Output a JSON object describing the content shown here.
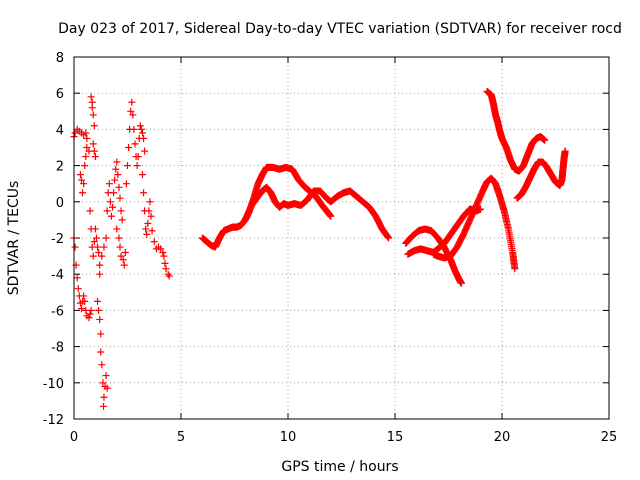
{
  "chart_data": {
    "type": "scatter",
    "title": "Day 023 of 2017, Sidereal Day-to-day VTEC variation (SDTVAR) for receiver rocd",
    "xlabel": "GPS time / hours",
    "ylabel": "SDTVAR / TECUs",
    "xlim": [
      0,
      25
    ],
    "ylim": [
      -12,
      8
    ],
    "xticks": [
      "0",
      "5",
      "10",
      "15",
      "20",
      "25"
    ],
    "yticks": [
      "8",
      "6",
      "4",
      "2",
      "0",
      "-2",
      "-4",
      "-6",
      "-8",
      "-10",
      "-12"
    ],
    "grid": true,
    "marker": "+",
    "marker_color": "#ff0000",
    "series": [
      {
        "name": "sdtvar",
        "points": [
          [
            0.0,
            3.6
          ],
          [
            0.05,
            3.8
          ],
          [
            0.15,
            4.0
          ],
          [
            0.25,
            3.9
          ],
          [
            0.35,
            3.8
          ],
          [
            0.45,
            3.7
          ],
          [
            0.55,
            3.8
          ],
          [
            0.6,
            3.5
          ],
          [
            0.0,
            -2.0
          ],
          [
            0.05,
            -2.5
          ],
          [
            0.1,
            -3.5
          ],
          [
            0.15,
            -4.2
          ],
          [
            0.2,
            -4.8
          ],
          [
            0.25,
            -5.2
          ],
          [
            0.3,
            -5.6
          ],
          [
            0.35,
            -5.9
          ],
          [
            0.4,
            -5.5
          ],
          [
            0.45,
            -5.2
          ],
          [
            0.5,
            -5.5
          ],
          [
            0.55,
            -6.0
          ],
          [
            0.6,
            -6.3
          ],
          [
            0.7,
            -6.4
          ],
          [
            0.75,
            -6.2
          ],
          [
            0.8,
            -6.0
          ],
          [
            0.3,
            1.5
          ],
          [
            0.35,
            1.2
          ],
          [
            0.4,
            0.5
          ],
          [
            0.45,
            1.0
          ],
          [
            0.5,
            2.0
          ],
          [
            0.55,
            2.5
          ],
          [
            0.6,
            3.0
          ],
          [
            0.7,
            2.8
          ],
          [
            0.75,
            -0.5
          ],
          [
            0.8,
            -1.5
          ],
          [
            0.85,
            -2.5
          ],
          [
            0.9,
            -3.0
          ],
          [
            0.95,
            -2.2
          ],
          [
            1.0,
            -1.5
          ],
          [
            1.05,
            -2.0
          ],
          [
            0.8,
            5.8
          ],
          [
            0.85,
            5.5
          ],
          [
            0.9,
            4.8
          ],
          [
            0.95,
            4.2
          ],
          [
            0.85,
            5.2
          ],
          [
            0.9,
            3.2
          ],
          [
            0.95,
            2.8
          ],
          [
            1.0,
            2.5
          ],
          [
            1.1,
            -5.5
          ],
          [
            1.15,
            -6.0
          ],
          [
            1.2,
            -6.5
          ],
          [
            1.25,
            -7.3
          ],
          [
            1.3,
            -9.0
          ],
          [
            1.35,
            -10.0
          ],
          [
            1.4,
            -10.8
          ],
          [
            1.45,
            -10.2
          ],
          [
            1.5,
            -9.6
          ],
          [
            1.55,
            -10.3
          ],
          [
            1.38,
            -11.3
          ],
          [
            1.25,
            -8.3
          ],
          [
            1.2,
            -4.0
          ],
          [
            1.1,
            -2.5
          ],
          [
            1.15,
            -2.8
          ],
          [
            1.2,
            -3.5
          ],
          [
            1.3,
            -3.0
          ],
          [
            1.4,
            -2.5
          ],
          [
            1.5,
            -2.0
          ],
          [
            1.55,
            -0.5
          ],
          [
            1.6,
            0.5
          ],
          [
            1.65,
            1.0
          ],
          [
            1.7,
            0.0
          ],
          [
            1.75,
            -0.8
          ],
          [
            1.8,
            -0.3
          ],
          [
            1.85,
            0.5
          ],
          [
            1.9,
            1.2
          ],
          [
            1.95,
            1.8
          ],
          [
            2.0,
            2.2
          ],
          [
            2.05,
            1.5
          ],
          [
            2.1,
            0.8
          ],
          [
            2.15,
            0.2
          ],
          [
            2.2,
            -0.5
          ],
          [
            2.25,
            -1.0
          ],
          [
            2.0,
            -1.5
          ],
          [
            2.1,
            -2.0
          ],
          [
            2.15,
            -2.5
          ],
          [
            2.2,
            -3.0
          ],
          [
            2.3,
            -3.2
          ],
          [
            2.35,
            -3.5
          ],
          [
            2.4,
            -2.8
          ],
          [
            2.45,
            1.0
          ],
          [
            2.5,
            2.0
          ],
          [
            2.55,
            3.0
          ],
          [
            2.6,
            4.0
          ],
          [
            2.65,
            5.0
          ],
          [
            2.7,
            5.5
          ],
          [
            2.75,
            4.8
          ],
          [
            2.8,
            4.0
          ],
          [
            2.85,
            3.2
          ],
          [
            2.9,
            2.5
          ],
          [
            2.95,
            2.0
          ],
          [
            3.0,
            2.5
          ],
          [
            3.05,
            3.5
          ],
          [
            3.1,
            4.2
          ],
          [
            3.15,
            4.0
          ],
          [
            3.2,
            3.8
          ],
          [
            3.25,
            3.5
          ],
          [
            3.3,
            2.8
          ],
          [
            3.2,
            1.5
          ],
          [
            3.25,
            0.5
          ],
          [
            3.3,
            -0.5
          ],
          [
            3.35,
            -1.5
          ],
          [
            3.4,
            -1.8
          ],
          [
            3.45,
            -1.2
          ],
          [
            3.5,
            -0.5
          ],
          [
            3.55,
            0.0
          ],
          [
            3.6,
            -0.8
          ],
          [
            3.65,
            -1.6
          ],
          [
            3.75,
            -2.2
          ],
          [
            3.85,
            -2.6
          ],
          [
            3.95,
            -2.5
          ],
          [
            4.05,
            -2.6
          ],
          [
            4.15,
            -2.8
          ],
          [
            4.2,
            -3.0
          ],
          [
            4.25,
            -3.4
          ],
          [
            4.3,
            -3.7
          ],
          [
            4.4,
            -4.0
          ],
          [
            4.45,
            -4.1
          ]
        ]
      }
    ],
    "curves": [
      [
        [
          6.0,
          -2.0
        ],
        [
          6.2,
          -2.2
        ],
        [
          6.4,
          -2.4
        ],
        [
          6.6,
          -2.5
        ],
        [
          6.8,
          -2.0
        ],
        [
          7.0,
          -1.6
        ],
        [
          7.2,
          -1.5
        ],
        [
          7.4,
          -1.4
        ],
        [
          7.6,
          -1.4
        ],
        [
          7.8,
          -1.3
        ],
        [
          8.0,
          -1.0
        ],
        [
          8.2,
          -0.5
        ],
        [
          8.4,
          0.2
        ],
        [
          8.6,
          1.0
        ],
        [
          8.8,
          1.5
        ],
        [
          9.0,
          1.9
        ],
        [
          9.3,
          1.9
        ],
        [
          9.6,
          1.8
        ],
        [
          9.9,
          1.9
        ],
        [
          10.2,
          1.8
        ],
        [
          10.5,
          1.2
        ],
        [
          10.8,
          0.8
        ],
        [
          11.0,
          0.6
        ],
        [
          11.3,
          0.3
        ],
        [
          11.6,
          -0.2
        ],
        [
          11.8,
          -0.5
        ],
        [
          12.0,
          -0.8
        ]
      ],
      [
        [
          8.0,
          -1.0
        ],
        [
          8.3,
          -0.2
        ],
        [
          8.6,
          0.3
        ],
        [
          8.8,
          0.6
        ],
        [
          9.0,
          0.8
        ],
        [
          9.2,
          0.5
        ],
        [
          9.4,
          0.0
        ],
        [
          9.6,
          -0.3
        ],
        [
          9.8,
          -0.1
        ],
        [
          10.0,
          -0.2
        ],
        [
          10.3,
          -0.1
        ],
        [
          10.6,
          -0.2
        ],
        [
          10.9,
          0.1
        ],
        [
          11.2,
          0.6
        ],
        [
          11.5,
          0.6
        ],
        [
          11.8,
          0.2
        ],
        [
          12.0,
          0.0
        ],
        [
          12.3,
          0.3
        ],
        [
          12.6,
          0.5
        ],
        [
          12.9,
          0.6
        ],
        [
          13.2,
          0.3
        ],
        [
          13.5,
          0.0
        ],
        [
          13.8,
          -0.3
        ],
        [
          14.1,
          -0.8
        ],
        [
          14.4,
          -1.5
        ],
        [
          14.7,
          -2.0
        ]
      ],
      [
        [
          15.5,
          -2.3
        ],
        [
          15.8,
          -1.9
        ],
        [
          16.1,
          -1.6
        ],
        [
          16.4,
          -1.5
        ],
        [
          16.7,
          -1.6
        ],
        [
          17.0,
          -2.0
        ],
        [
          17.3,
          -2.5
        ],
        [
          17.6,
          -3.2
        ],
        [
          17.8,
          -3.8
        ],
        [
          18.0,
          -4.3
        ],
        [
          18.1,
          -4.5
        ]
      ],
      [
        [
          15.6,
          -2.9
        ],
        [
          15.9,
          -2.7
        ],
        [
          16.2,
          -2.6
        ],
        [
          16.5,
          -2.7
        ],
        [
          16.8,
          -2.8
        ],
        [
          17.0,
          -2.6
        ],
        [
          17.3,
          -2.3
        ],
        [
          17.6,
          -1.8
        ],
        [
          17.9,
          -1.3
        ],
        [
          18.2,
          -0.8
        ],
        [
          18.5,
          -0.4
        ],
        [
          18.8,
          -0.5
        ],
        [
          19.0,
          -0.4
        ]
      ],
      [
        [
          16.8,
          -2.9
        ],
        [
          17.0,
          -3.0
        ],
        [
          17.3,
          -3.1
        ],
        [
          17.6,
          -3.0
        ],
        [
          17.9,
          -2.5
        ],
        [
          18.2,
          -1.8
        ],
        [
          18.5,
          -1.0
        ],
        [
          18.8,
          -0.2
        ],
        [
          19.1,
          0.6
        ],
        [
          19.3,
          1.1
        ],
        [
          19.5,
          1.3
        ],
        [
          19.7,
          1.0
        ],
        [
          19.9,
          0.3
        ],
        [
          20.1,
          -0.5
        ],
        [
          20.3,
          -1.5
        ],
        [
          20.5,
          -2.8
        ],
        [
          20.6,
          -3.7
        ]
      ],
      [
        [
          19.3,
          6.1
        ],
        [
          19.5,
          5.9
        ],
        [
          19.6,
          5.4
        ],
        [
          19.7,
          4.8
        ],
        [
          19.8,
          4.4
        ],
        [
          19.9,
          3.9
        ],
        [
          20.0,
          3.5
        ],
        [
          20.2,
          3.0
        ],
        [
          20.4,
          2.3
        ],
        [
          20.6,
          1.8
        ],
        [
          20.8,
          1.7
        ],
        [
          21.0,
          2.0
        ],
        [
          21.2,
          2.6
        ],
        [
          21.4,
          3.2
        ],
        [
          21.6,
          3.5
        ],
        [
          21.8,
          3.6
        ],
        [
          22.0,
          3.4
        ]
      ],
      [
        [
          20.7,
          0.2
        ],
        [
          20.9,
          0.4
        ],
        [
          21.1,
          0.8
        ],
        [
          21.3,
          1.3
        ],
        [
          21.5,
          1.8
        ],
        [
          21.7,
          2.2
        ],
        [
          21.9,
          2.2
        ],
        [
          22.1,
          1.9
        ],
        [
          22.3,
          1.5
        ],
        [
          22.5,
          1.1
        ],
        [
          22.7,
          0.9
        ],
        [
          22.8,
          1.2
        ],
        [
          22.85,
          1.8
        ],
        [
          22.9,
          2.4
        ],
        [
          22.95,
          2.8
        ]
      ]
    ]
  }
}
